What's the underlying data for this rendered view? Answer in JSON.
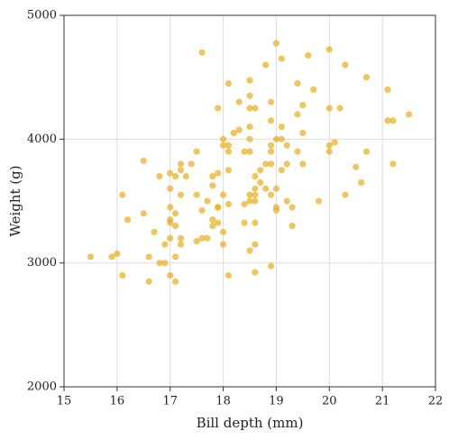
{
  "chart_data": {
    "type": "scatter",
    "x_label": "Bill depth (mm)",
    "y_label": "Weight (g)",
    "color": "#e8ac1c",
    "grid": true,
    "xlim": [
      15,
      22
    ],
    "xticks": [
      15,
      16,
      17,
      18,
      19,
      20,
      21,
      22
    ],
    "ylim": [
      2000,
      5000
    ],
    "yticks": [
      2000,
      3000,
      4000,
      5000
    ],
    "x": [
      15.5,
      15.9,
      16.0,
      16.1,
      16.1,
      16.2,
      16.5,
      16.5,
      16.6,
      16.6,
      16.7,
      16.8,
      16.8,
      16.9,
      16.9,
      17.0,
      17.0,
      17.0,
      17.0,
      17.0,
      17.0,
      17.0,
      17.1,
      17.1,
      17.1,
      17.1,
      17.1,
      17.2,
      17.2,
      17.2,
      17.2,
      17.2,
      17.3,
      17.4,
      17.5,
      17.5,
      17.5,
      17.6,
      17.6,
      17.6,
      17.7,
      17.7,
      17.8,
      17.8,
      17.8,
      17.8,
      17.9,
      17.9,
      17.9,
      17.9,
      17.9,
      18.0,
      18.0,
      18.0,
      18.0,
      18.0,
      18.1,
      18.1,
      18.1,
      18.1,
      18.1,
      18.1,
      18.2,
      18.3,
      18.3,
      18.4,
      18.4,
      18.4,
      18.5,
      18.5,
      18.5,
      18.5,
      18.5,
      18.5,
      18.5,
      18.5,
      18.5,
      18.6,
      18.6,
      18.6,
      18.6,
      18.6,
      18.6,
      18.6,
      18.6,
      18.7,
      18.7,
      18.8,
      18.8,
      18.8,
      18.9,
      18.9,
      18.9,
      18.9,
      18.9,
      18.9,
      18.9,
      19.0,
      19.0,
      19.0,
      19.0,
      19.0,
      19.1,
      19.1,
      19.1,
      19.1,
      19.2,
      19.2,
      19.2,
      19.3,
      19.3,
      19.4,
      19.4,
      19.4,
      19.5,
      19.5,
      19.5,
      19.6,
      19.7,
      19.8,
      20.0,
      20.0,
      20.0,
      20.0,
      20.1,
      20.2,
      20.3,
      20.3,
      20.5,
      20.6,
      20.7,
      20.7,
      21.1,
      21.1,
      21.2,
      21.2,
      21.5
    ],
    "values": [
      3050,
      3050,
      3075,
      2900,
      3550,
      3350,
      3400,
      3825,
      3050,
      2850,
      3250,
      3000,
      3700,
      3000,
      3150,
      3200,
      2900,
      3350,
      3325,
      3450,
      3600,
      3725,
      3050,
      2850,
      3400,
      3700,
      3300,
      3200,
      3150,
      3550,
      3750,
      3800,
      3700,
      3800,
      3900,
      3550,
      3175,
      4700,
      3425,
      3200,
      3500,
      3200,
      3700,
      3350,
      3300,
      3625,
      3450,
      3450,
      3325,
      3725,
      4250,
      4000,
      3950,
      3550,
      3250,
      3150,
      4450,
      3900,
      3950,
      3750,
      3475,
      2900,
      4050,
      4300,
      4075,
      3900,
      3325,
      3475,
      4475,
      4350,
      4250,
      4100,
      4000,
      3900,
      3550,
      3500,
      3100,
      4250,
      3700,
      3600,
      3550,
      3500,
      3325,
      3150,
      2925,
      3650,
      3750,
      4600,
      3800,
      3600,
      4300,
      4150,
      3950,
      3900,
      3800,
      3550,
      2975,
      4775,
      4000,
      3450,
      3425,
      3600,
      4650,
      4100,
      4000,
      3750,
      3950,
      3800,
      3500,
      3450,
      3300,
      4450,
      4200,
      3900,
      4050,
      4275,
      3800,
      4675,
      4400,
      3500,
      4725,
      4250,
      3950,
      3900,
      3975,
      4250,
      4600,
      3550,
      3775,
      3650,
      4500,
      3900,
      4400,
      4150,
      4150,
      3800,
      4200
    ]
  }
}
